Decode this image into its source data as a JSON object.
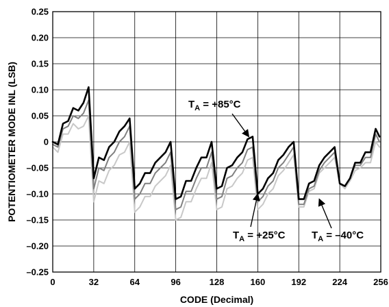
{
  "chart_data": {
    "type": "line",
    "title": "",
    "xlabel": "CODE (Decimal)",
    "ylabel": "POTENTIOMETER MODE INL (LSB)",
    "xlim": [
      0,
      256
    ],
    "ylim": [
      -0.25,
      0.25
    ],
    "grid": true,
    "x_ticks": [
      "0",
      "32",
      "64",
      "96",
      "128",
      "160",
      "192",
      "224",
      "256"
    ],
    "y_ticks": [
      "0.25",
      "0.20",
      "0.15",
      "0.10",
      "0.05",
      "0",
      "–0.05",
      "–0.10",
      "–0.15",
      "–0.20",
      "–0.25"
    ],
    "x": [
      0,
      4,
      8,
      12,
      16,
      20,
      24,
      28,
      32,
      36,
      40,
      44,
      48,
      52,
      56,
      60,
      64,
      68,
      72,
      76,
      80,
      84,
      88,
      92,
      96,
      100,
      104,
      108,
      112,
      116,
      120,
      124,
      128,
      132,
      136,
      140,
      144,
      148,
      152,
      156,
      160,
      164,
      168,
      172,
      176,
      180,
      184,
      188,
      192,
      196,
      200,
      204,
      208,
      212,
      216,
      220,
      224,
      228,
      232,
      236,
      240,
      244,
      248,
      252,
      255
    ],
    "series": [
      {
        "name": "T_A = +85°C",
        "color": "#000000",
        "values": [
          0.0,
          -0.005,
          0.035,
          0.04,
          0.065,
          0.06,
          0.075,
          0.105,
          -0.07,
          -0.03,
          -0.035,
          -0.01,
          0.0,
          0.02,
          0.03,
          0.045,
          -0.09,
          -0.08,
          -0.06,
          -0.06,
          -0.04,
          -0.03,
          -0.02,
          0.0,
          -0.11,
          -0.105,
          -0.075,
          -0.075,
          -0.05,
          -0.03,
          -0.03,
          0.0,
          -0.09,
          -0.085,
          -0.05,
          -0.045,
          -0.03,
          -0.02,
          0.005,
          0.01,
          -0.1,
          -0.09,
          -0.07,
          -0.06,
          -0.035,
          -0.025,
          -0.01,
          0.0,
          -0.11,
          -0.11,
          -0.08,
          -0.075,
          -0.045,
          -0.03,
          -0.02,
          -0.01,
          -0.08,
          -0.085,
          -0.07,
          -0.04,
          -0.04,
          -0.02,
          -0.02,
          0.025,
          0.01
        ]
      },
      {
        "name": "T_A = +25°C",
        "color": "#808080",
        "values": [
          -0.005,
          -0.01,
          0.025,
          0.03,
          0.05,
          0.045,
          0.055,
          0.08,
          -0.09,
          -0.05,
          -0.055,
          -0.03,
          -0.02,
          0.0,
          0.01,
          0.03,
          -0.11,
          -0.1,
          -0.08,
          -0.08,
          -0.06,
          -0.05,
          -0.04,
          -0.02,
          -0.13,
          -0.125,
          -0.095,
          -0.095,
          -0.07,
          -0.05,
          -0.05,
          -0.02,
          -0.11,
          -0.105,
          -0.07,
          -0.065,
          -0.05,
          -0.04,
          -0.015,
          -0.01,
          -0.115,
          -0.105,
          -0.085,
          -0.075,
          -0.05,
          -0.04,
          -0.025,
          -0.01,
          -0.12,
          -0.12,
          -0.09,
          -0.085,
          -0.055,
          -0.04,
          -0.03,
          -0.02,
          -0.08,
          -0.085,
          -0.07,
          -0.045,
          -0.045,
          -0.03,
          -0.03,
          0.015,
          0.0
        ]
      },
      {
        "name": "T_A = –40°C",
        "color": "#c8c8c8",
        "values": [
          -0.01,
          -0.02,
          0.015,
          0.015,
          0.035,
          0.025,
          0.03,
          0.05,
          -0.115,
          -0.075,
          -0.08,
          -0.055,
          -0.045,
          -0.025,
          -0.02,
          0.0,
          -0.135,
          -0.125,
          -0.105,
          -0.105,
          -0.085,
          -0.075,
          -0.065,
          -0.045,
          -0.15,
          -0.145,
          -0.115,
          -0.115,
          -0.09,
          -0.07,
          -0.07,
          -0.04,
          -0.13,
          -0.125,
          -0.09,
          -0.085,
          -0.07,
          -0.06,
          -0.035,
          -0.03,
          -0.13,
          -0.12,
          -0.1,
          -0.09,
          -0.065,
          -0.055,
          -0.04,
          -0.025,
          -0.125,
          -0.125,
          -0.095,
          -0.09,
          -0.06,
          -0.05,
          -0.04,
          -0.03,
          -0.08,
          -0.09,
          -0.075,
          -0.055,
          -0.05,
          -0.04,
          -0.04,
          0.0,
          -0.01
        ]
      }
    ],
    "annotations": [
      {
        "main": "T",
        "sub": "A",
        "rest": " = +85°C",
        "target_x": 153,
        "target_y": 0.01
      },
      {
        "main": "T",
        "sub": "A",
        "rest": " = +25°C",
        "target_x": 160,
        "target_y": -0.1
      },
      {
        "main": "T",
        "sub": "A",
        "rest": " = –40°C",
        "target_x": 208,
        "target_y": -0.11
      }
    ]
  }
}
